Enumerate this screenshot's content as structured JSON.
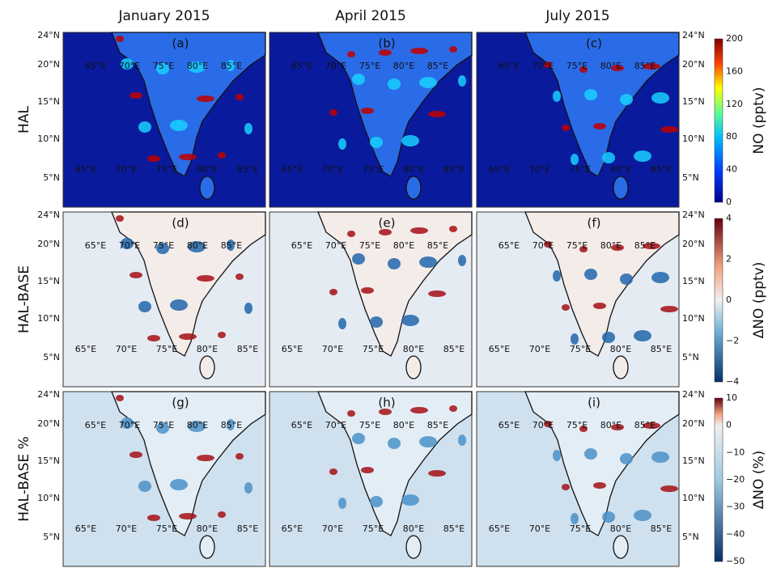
{
  "columns": [
    "January 2015",
    "April 2015",
    "July 2015"
  ],
  "rows": [
    {
      "label": "HAL",
      "colorbar_label": "NO (pptv)",
      "colorbar_ticks": [
        "0",
        "40",
        "80",
        "120",
        "160",
        "200"
      ]
    },
    {
      "label": "HAL-BASE",
      "colorbar_label": "ΔNO (pptv)",
      "colorbar_ticks": [
        "−4",
        "−2",
        "0",
        "2",
        "4"
      ]
    },
    {
      "label": "HAL-BASE %",
      "colorbar_label": "ΔNO (%)",
      "colorbar_ticks": [
        "−50",
        "−40",
        "−30",
        "−20",
        "−10",
        "0",
        "10"
      ]
    }
  ],
  "panels": [
    "(a)",
    "(b)",
    "(c)",
    "(d)",
    "(e)",
    "(f)",
    "(g)",
    "(h)",
    "(i)"
  ],
  "lon_labels": [
    "65°E",
    "70°E",
    "75°E",
    "80°E",
    "85°E"
  ],
  "lat_labels": [
    "24°N",
    "20°N",
    "15°N",
    "10°N",
    "5°N"
  ]
}
